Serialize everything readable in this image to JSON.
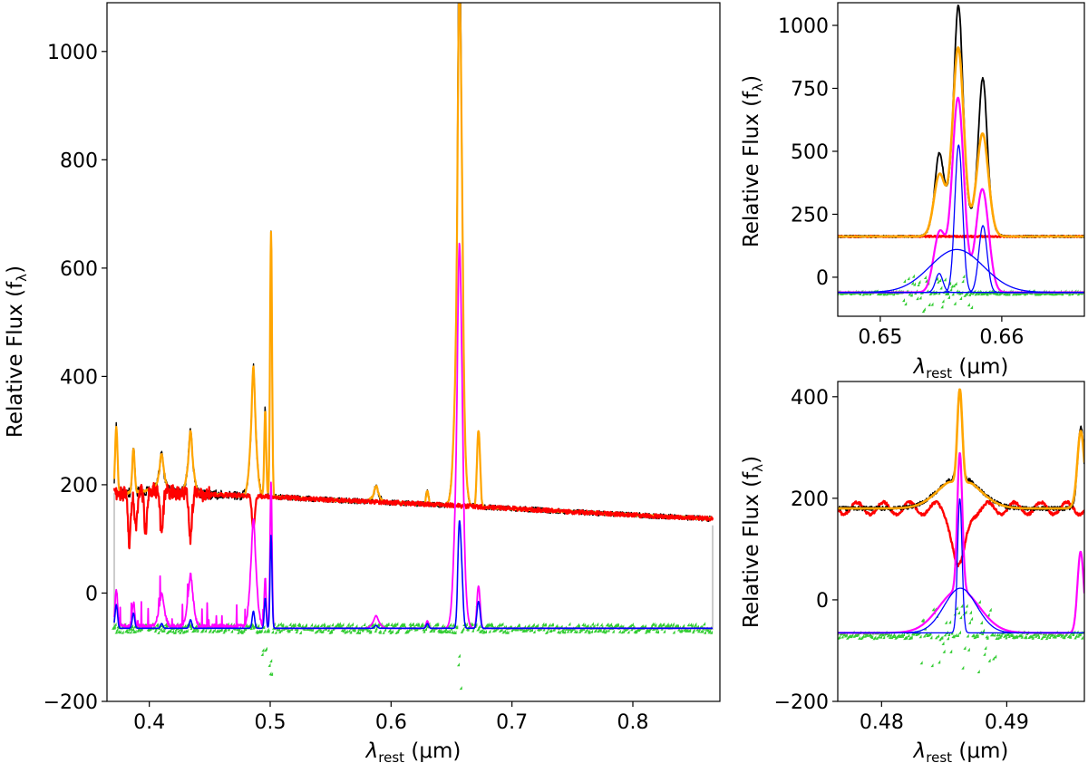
{
  "colors": {
    "observed": "#000000",
    "total_model": "#ffa500",
    "continuum": "#ff0000",
    "broad_component": "#ff00ff",
    "narrow_component": "#0000ff",
    "residuals": "#33cc33",
    "masked_region": "#cccccc"
  },
  "chart_data": [
    {
      "id": "main",
      "type": "line",
      "title": "",
      "xlabel": {
        "main": "λ",
        "sub": "rest",
        "unit": " (μm)"
      },
      "ylabel": {
        "main": "Relative Flux (f",
        "sub": "λ",
        "end": ")"
      },
      "xlim": [
        0.365,
        0.872
      ],
      "ylim": [
        -200,
        1090
      ],
      "xticks": [
        0.4,
        0.5,
        0.6,
        0.7,
        0.8
      ],
      "xtick_labels": [
        "0.4",
        "0.5",
        "0.6",
        "0.7",
        "0.8"
      ],
      "yticks": [
        -200,
        0,
        200,
        400,
        600,
        800,
        1000
      ],
      "ytick_labels": [
        "−200",
        "0",
        "200",
        "400",
        "600",
        "800",
        "1000"
      ],
      "continuum_points": [
        [
          0.371,
          182
        ],
        [
          0.4,
          190
        ],
        [
          0.45,
          182
        ],
        [
          0.5,
          178
        ],
        [
          0.55,
          172
        ],
        [
          0.6,
          167
        ],
        [
          0.65,
          162
        ],
        [
          0.7,
          156
        ],
        [
          0.75,
          150
        ],
        [
          0.8,
          144
        ],
        [
          0.84,
          140
        ],
        [
          0.866,
          137
        ]
      ],
      "absorption_lines": [
        [
          0.3835,
          90,
          0.0012
        ],
        [
          0.3889,
          70,
          0.0012
        ],
        [
          0.397,
          75,
          0.0012
        ],
        [
          0.4102,
          80,
          0.0012
        ],
        [
          0.4341,
          80,
          0.0012
        ],
        [
          0.4861,
          60,
          0.0012
        ]
      ],
      "emission_lines": [
        {
          "center": 0.3727,
          "broad": 0,
          "narrow": 125,
          "fwhm_n": 0.001
        },
        {
          "center": 0.3869,
          "broad": 0,
          "narrow": 80,
          "fwhm_n": 0.001
        },
        {
          "center": 0.4102,
          "broad": 45,
          "narrow": 25,
          "fwhm_n": 0.001
        },
        {
          "center": 0.4341,
          "broad": 70,
          "narrow": 45,
          "fwhm_n": 0.001
        },
        {
          "center": 0.4861,
          "broad": 150,
          "narrow": 90,
          "fwhm_n": 0.001
        },
        {
          "center": 0.4959,
          "broad": 0,
          "narrow": 160,
          "fwhm_n": 0.0008
        },
        {
          "center": 0.5007,
          "broad": 0,
          "narrow": 490,
          "fwhm_n": 0.0008
        },
        {
          "center": 0.5876,
          "broad": 15,
          "narrow": 15,
          "fwhm_n": 0.0012
        },
        {
          "center": 0.63,
          "broad": 0,
          "narrow": 25,
          "fwhm_n": 0.001
        },
        {
          "center": 0.6563,
          "broad": 400,
          "narrow": 500,
          "fwhm_n": 0.0012
        },
        {
          "center": 0.6584,
          "broad": 0,
          "narrow": 260,
          "fwhm_n": 0.0012
        },
        {
          "center": 0.6717,
          "broad": 0,
          "narrow": 95,
          "fwhm_n": 0.001
        },
        {
          "center": 0.6731,
          "broad": 0,
          "narrow": 85,
          "fwhm_n": 0.001
        }
      ],
      "component_offset": -65,
      "residual_level": -68,
      "mask_edges": [
        0.371,
        0.866
      ]
    },
    {
      "id": "halpha",
      "type": "line",
      "title": "",
      "xlabel": {
        "main": "λ",
        "sub": "rest",
        "unit": " (μm)"
      },
      "ylabel": {
        "main": "Relative Flux (f",
        "sub": "λ",
        "end": ")"
      },
      "xlim": [
        0.6465,
        0.6668
      ],
      "ylim": [
        -155,
        1090
      ],
      "xticks": [
        0.65,
        0.66
      ],
      "xtick_labels": [
        "0.65",
        "0.66"
      ],
      "yticks": [
        0,
        250,
        500,
        750,
        1000
      ],
      "ytick_labels": [
        "0",
        "250",
        "500",
        "750",
        "1000"
      ],
      "continuum_level": 162,
      "component_offset": -60,
      "components": [
        {
          "kind": "broad",
          "center": 0.6563,
          "amp": 170,
          "sigma": 0.0022
        },
        {
          "kind": "narrow",
          "center": 0.65485,
          "amp": 75,
          "sigma": 0.0003
        },
        {
          "kind": "narrow",
          "center": 0.65645,
          "amp": 585,
          "sigma": 0.00032
        },
        {
          "kind": "narrow",
          "center": 0.65845,
          "amp": 265,
          "sigma": 0.00034
        }
      ],
      "magenta_lines": [
        {
          "center": 0.6549,
          "amp": 240,
          "sigma": 0.0005
        },
        {
          "center": 0.6564,
          "amp": 770,
          "sigma": 0.00048
        },
        {
          "center": 0.6584,
          "amp": 410,
          "sigma": 0.00052
        }
      ],
      "observed_peaks": [
        [
          0.65485,
          495
        ],
        [
          0.65645,
          1080
        ],
        [
          0.65845,
          790
        ]
      ],
      "model_peaks": [
        [
          0.65485,
          410
        ],
        [
          0.65645,
          910
        ],
        [
          0.65845,
          570
        ]
      ]
    },
    {
      "id": "hbeta",
      "type": "line",
      "title": "",
      "xlabel": {
        "main": "λ",
        "sub": "rest",
        "unit": " (μm)"
      },
      "ylabel": {
        "main": "Relative Flux (f",
        "sub": "λ",
        "end": ")"
      },
      "xlim": [
        0.4765,
        0.4962
      ],
      "ylim": [
        -200,
        430
      ],
      "xticks": [
        0.48,
        0.49
      ],
      "xtick_labels": [
        "0.48",
        "0.49"
      ],
      "yticks": [
        -200,
        0,
        200,
        400
      ],
      "ytick_labels": [
        "−200",
        "0",
        "200",
        "400"
      ],
      "continuum_level": 180,
      "component_offset": -65,
      "components": [
        {
          "kind": "broad",
          "center": 0.4863,
          "amp": 88,
          "sigma": 0.0013
        },
        {
          "kind": "narrow",
          "center": 0.48625,
          "amp": 265,
          "sigma": 0.00018
        }
      ],
      "magenta_lines": [
        {
          "center": 0.4862,
          "amp": 85,
          "sigma": 0.0016
        },
        {
          "center": 0.48625,
          "amp": 270,
          "sigma": 0.0002
        },
        {
          "center": 0.4959,
          "amp": 160,
          "sigma": 0.00025
        }
      ],
      "observed_peaks": [
        [
          0.48625,
          415
        ],
        [
          0.496,
          332
        ]
      ],
      "model_peaks": [
        [
          0.48625,
          415
        ],
        [
          0.496,
          325
        ]
      ]
    }
  ]
}
